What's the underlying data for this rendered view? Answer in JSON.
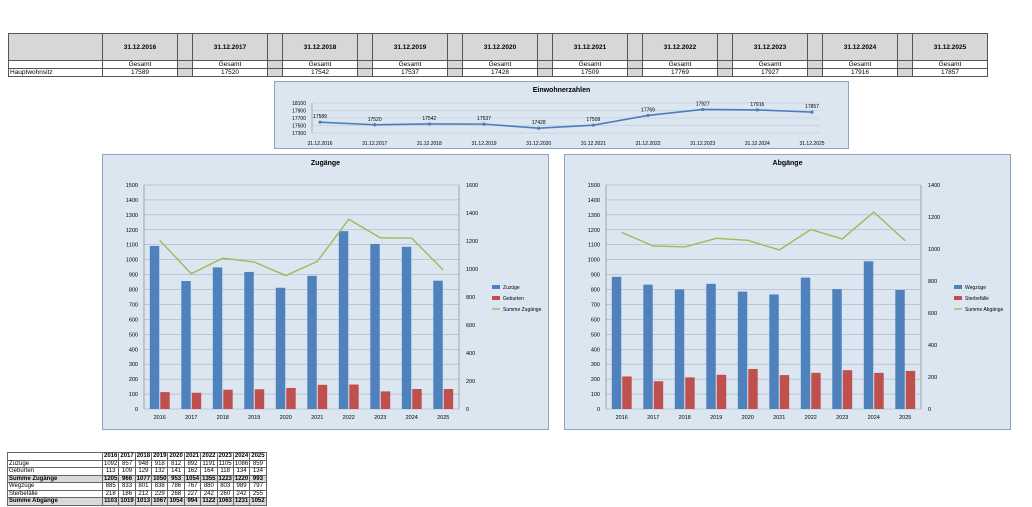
{
  "top_table": {
    "dates": [
      "31.12.2016",
      "31.12.2017",
      "31.12.2018",
      "31.12.2019",
      "31.12.2020",
      "31.12.2021",
      "31.12.2022",
      "31.12.2023",
      "31.12.2024",
      "31.12.2025"
    ],
    "sub_label": "Gesamt",
    "row_label": "Hauptwohnsitz",
    "values": [
      "17589",
      "17520",
      "17542",
      "17537",
      "17428",
      "17509",
      "17769",
      "17927",
      "17916",
      "17857"
    ]
  },
  "chart_data": [
    {
      "type": "line",
      "title": "Einwohnerzahlen",
      "x": [
        "31.12.2016",
        "31.12.2017",
        "31.12.2018",
        "31.12.2019",
        "31.12.2020",
        "31.12.2021",
        "31.12.2022",
        "31.12.2023",
        "31.12.2024",
        "31.12.2025"
      ],
      "series": [
        {
          "values": [
            17589,
            17520,
            17542,
            17537,
            17428,
            17509,
            17769,
            17927,
            17916,
            17857
          ]
        }
      ],
      "ylim": [
        17300,
        18100
      ],
      "yticks": [
        17300,
        17500,
        17700,
        17900,
        18100
      ],
      "color": "#4a7ebb",
      "grid": true
    },
    {
      "type": "bar",
      "title": "Zugänge",
      "categories": [
        "2016",
        "2017",
        "2018",
        "2019",
        "2020",
        "2021",
        "2022",
        "2023",
        "2024",
        "2025"
      ],
      "series": [
        {
          "name": "Zuzüge",
          "values": [
            1092,
            857,
            948,
            918,
            812,
            892,
            1191,
            1105,
            1086,
            859
          ],
          "color": "#4f81bd"
        },
        {
          "name": "Geburten",
          "values": [
            113,
            109,
            129,
            132,
            141,
            162,
            164,
            118,
            134,
            134
          ],
          "color": "#c0504d"
        },
        {
          "name": "Summe Zugänge",
          "values": [
            1205,
            966,
            1077,
            1050,
            953,
            1054,
            1355,
            1223,
            1220,
            993
          ],
          "color": "#9bbb59",
          "axis": "secondary",
          "type": "line"
        }
      ],
      "ylim": [
        0,
        1500
      ],
      "yticks": [
        0,
        100,
        200,
        300,
        400,
        500,
        600,
        700,
        800,
        900,
        1000,
        1100,
        1200,
        1300,
        1400,
        1500
      ],
      "y2lim": [
        0,
        1600
      ],
      "y2ticks": [
        0,
        200,
        400,
        600,
        800,
        1000,
        1200,
        1400,
        1600
      ],
      "legend": "right",
      "grid": true
    },
    {
      "type": "bar",
      "title": "Abgänge",
      "categories": [
        "2016",
        "2017",
        "2018",
        "2019",
        "2020",
        "2021",
        "2022",
        "2023",
        "2024",
        "2025"
      ],
      "series": [
        {
          "name": "Wegzüge",
          "values": [
            885,
            833,
            801,
            838,
            786,
            767,
            880,
            803,
            989,
            797
          ],
          "color": "#4f81bd"
        },
        {
          "name": "Sterbefälle",
          "values": [
            218,
            186,
            212,
            229,
            268,
            227,
            242,
            260,
            242,
            255
          ],
          "color": "#c0504d"
        },
        {
          "name": "Summe Abgänge",
          "values": [
            1103,
            1019,
            1013,
            1067,
            1054,
            994,
            1122,
            1063,
            1231,
            1052
          ],
          "color": "#9bbb59",
          "axis": "secondary",
          "type": "line"
        }
      ],
      "ylim": [
        0,
        1500
      ],
      "yticks": [
        0,
        100,
        200,
        300,
        400,
        500,
        600,
        700,
        800,
        900,
        1000,
        1100,
        1200,
        1300,
        1400,
        1500
      ],
      "y2lim": [
        0,
        1400
      ],
      "y2ticks": [
        0,
        200,
        400,
        600,
        800,
        1000,
        1200,
        1400
      ],
      "legend": "right",
      "grid": true
    }
  ],
  "bottom_table": {
    "years": [
      "2016",
      "2017",
      "2018",
      "2019",
      "2020",
      "2021",
      "2022",
      "2023",
      "2024",
      "2025"
    ],
    "rows": [
      {
        "label": "Zuzüge",
        "values": [
          "1092",
          "857",
          "948",
          "918",
          "812",
          "892",
          "1191",
          "1105",
          "1086",
          "859"
        ],
        "sum": false
      },
      {
        "label": "Geburten",
        "values": [
          "113",
          "109",
          "129",
          "132",
          "141",
          "162",
          "164",
          "118",
          "134",
          "134"
        ],
        "sum": false
      },
      {
        "label": "Summe Zugänge",
        "values": [
          "1205",
          "966",
          "1077",
          "1050",
          "953",
          "1054",
          "1355",
          "1223",
          "1220",
          "993"
        ],
        "sum": true
      },
      {
        "label": "Wegzüge",
        "values": [
          "885",
          "833",
          "801",
          "838",
          "786",
          "767",
          "880",
          "803",
          "989",
          "797"
        ],
        "sum": false
      },
      {
        "label": "Sterbefälle",
        "values": [
          "218",
          "186",
          "212",
          "229",
          "268",
          "227",
          "242",
          "260",
          "242",
          "255"
        ],
        "sum": false
      },
      {
        "label": "Summe Abgänge",
        "values": [
          "1103",
          "1019",
          "1013",
          "1067",
          "1054",
          "994",
          "1122",
          "1063",
          "1231",
          "1052"
        ],
        "sum": true
      }
    ]
  }
}
